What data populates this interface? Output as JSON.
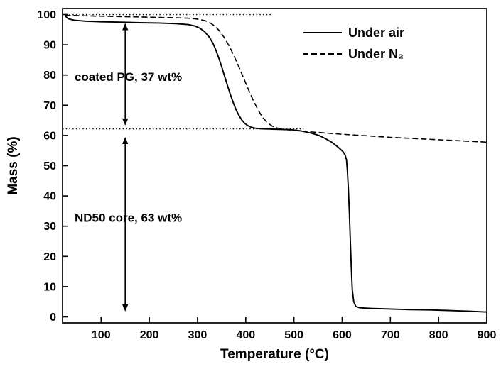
{
  "figure": {
    "background": "#ffffff",
    "foreground": "#000000"
  },
  "chart_data": {
    "type": "line",
    "title": "",
    "xlabel": "Temperature (°C)",
    "ylabel": "Mass (%)",
    "xlim": [
      20,
      900
    ],
    "ylim": [
      -2,
      102
    ],
    "xticks": [
      100,
      200,
      300,
      400,
      500,
      600,
      700,
      800,
      900
    ],
    "yticks": [
      0,
      10,
      20,
      30,
      40,
      50,
      60,
      70,
      80,
      90,
      100
    ],
    "grid": false,
    "color": "#000000",
    "legend": {
      "position": "top-right"
    },
    "series": [
      {
        "name": "Under air",
        "style": "solid",
        "points": [
          [
            25,
            99.6
          ],
          [
            32,
            98.6
          ],
          [
            45,
            98.1
          ],
          [
            70,
            97.8
          ],
          [
            100,
            97.6
          ],
          [
            140,
            97.5
          ],
          [
            180,
            97.3
          ],
          [
            220,
            97.2
          ],
          [
            255,
            97.0
          ],
          [
            280,
            96.7
          ],
          [
            295,
            96.2
          ],
          [
            305,
            95.5
          ],
          [
            315,
            94.3
          ],
          [
            325,
            92.4
          ],
          [
            332,
            90.5
          ],
          [
            338,
            88.3
          ],
          [
            344,
            85.7
          ],
          [
            350,
            82.8
          ],
          [
            356,
            79.7
          ],
          [
            362,
            76.6
          ],
          [
            368,
            73.6
          ],
          [
            374,
            70.9
          ],
          [
            380,
            68.5
          ],
          [
            386,
            66.6
          ],
          [
            392,
            65.1
          ],
          [
            398,
            64.0
          ],
          [
            405,
            63.2
          ],
          [
            412,
            62.7
          ],
          [
            420,
            62.4
          ],
          [
            435,
            62.2
          ],
          [
            455,
            62.1
          ],
          [
            475,
            62.0
          ],
          [
            495,
            61.9
          ],
          [
            515,
            61.5
          ],
          [
            535,
            60.8
          ],
          [
            552,
            60.0
          ],
          [
            565,
            59.0
          ],
          [
            578,
            57.8
          ],
          [
            588,
            56.6
          ],
          [
            596,
            55.5
          ],
          [
            602,
            54.6
          ],
          [
            606,
            53.6
          ],
          [
            609,
            52.0
          ],
          [
            611,
            48.0
          ],
          [
            613,
            42.0
          ],
          [
            615,
            34.0
          ],
          [
            617,
            25.0
          ],
          [
            619,
            16.0
          ],
          [
            621,
            9.0
          ],
          [
            624,
            5.0
          ],
          [
            628,
            3.5
          ],
          [
            636,
            3.0
          ],
          [
            660,
            2.8
          ],
          [
            700,
            2.6
          ],
          [
            740,
            2.4
          ],
          [
            780,
            2.3
          ],
          [
            820,
            2.1
          ],
          [
            860,
            1.9
          ],
          [
            900,
            1.6
          ]
        ]
      },
      {
        "name": "Under N₂",
        "style": "dashed",
        "points": [
          [
            25,
            99.8
          ],
          [
            60,
            99.6
          ],
          [
            120,
            99.4
          ],
          [
            180,
            99.2
          ],
          [
            240,
            99.0
          ],
          [
            280,
            98.8
          ],
          [
            300,
            98.5
          ],
          [
            315,
            98.0
          ],
          [
            325,
            97.4
          ],
          [
            335,
            96.3
          ],
          [
            345,
            94.7
          ],
          [
            355,
            92.5
          ],
          [
            365,
            89.8
          ],
          [
            375,
            86.6
          ],
          [
            385,
            83.0
          ],
          [
            395,
            79.2
          ],
          [
            405,
            75.4
          ],
          [
            415,
            71.8
          ],
          [
            425,
            68.6
          ],
          [
            435,
            66.0
          ],
          [
            445,
            64.2
          ],
          [
            455,
            63.1
          ],
          [
            465,
            62.5
          ],
          [
            480,
            62.0
          ],
          [
            500,
            61.7
          ],
          [
            525,
            61.3
          ],
          [
            550,
            61.0
          ],
          [
            600,
            60.4
          ],
          [
            650,
            59.9
          ],
          [
            700,
            59.4
          ],
          [
            750,
            59.0
          ],
          [
            800,
            58.6
          ],
          [
            850,
            58.2
          ],
          [
            900,
            57.8
          ]
        ]
      }
    ],
    "reference_lines": [
      {
        "y": 100,
        "x1": 20,
        "x2": 455,
        "style": "dotted"
      },
      {
        "y": 62.2,
        "x1": 20,
        "x2": 520,
        "style": "dotted"
      }
    ],
    "annotations": [
      {
        "text": "coated PG, 37 wt%",
        "x": 45,
        "y": 78
      },
      {
        "text": "ND50 core, 63 wt%",
        "x": 45,
        "y": 31.5
      }
    ],
    "arrows": [
      {
        "x": 150,
        "y1": 97.2,
        "y2": 63.3
      },
      {
        "x": 150,
        "y1": 59.5,
        "y2": 1.8
      }
    ]
  }
}
